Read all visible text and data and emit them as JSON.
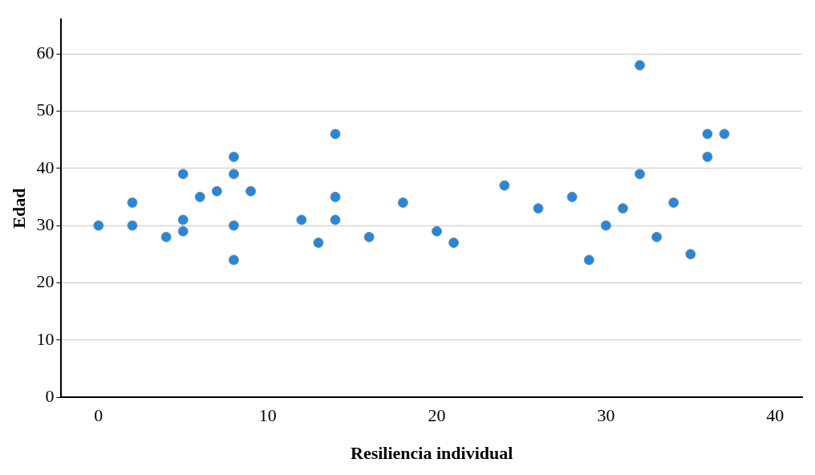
{
  "chart_data": {
    "type": "scatter",
    "xlabel": "Resiliencia individual",
    "ylabel": "Edad",
    "x": [
      0,
      2,
      2,
      4,
      5,
      5,
      5,
      6,
      7,
      8,
      8,
      8,
      8,
      9,
      12,
      13,
      14,
      14,
      14,
      16,
      18,
      20,
      21,
      24,
      26,
      28,
      29,
      30,
      31,
      32,
      32,
      33,
      34,
      35,
      36,
      36,
      37
    ],
    "series": [
      {
        "color": "#1e88e5",
        "values": [
          30,
          34,
          30,
          28,
          39,
          31,
          29,
          35,
          36,
          42,
          39,
          30,
          24,
          36,
          31,
          27,
          46,
          35,
          31,
          28,
          34,
          29,
          27,
          37,
          33,
          35,
          24,
          30,
          33,
          58,
          39,
          28,
          34,
          25,
          46,
          42,
          46
        ]
      }
    ],
    "xlim": [
      -2.2,
      41.6
    ],
    "xticks": [
      0,
      10,
      20,
      30,
      40
    ],
    "ylim": [
      0,
      66
    ],
    "yticks": [
      0,
      10,
      20,
      30,
      40,
      50,
      60
    ],
    "grid": "y",
    "legend": false,
    "marker": "circle"
  }
}
